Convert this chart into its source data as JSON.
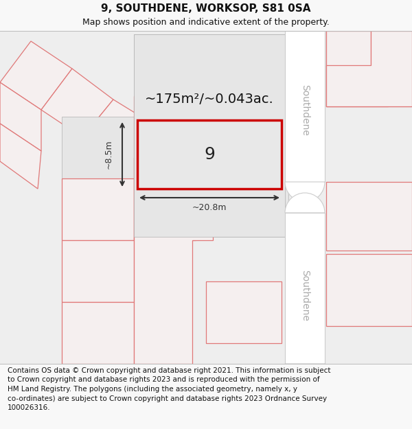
{
  "title": "9, SOUTHDENE, WORKSOP, S81 0SA",
  "subtitle": "Map shows position and indicative extent of the property.",
  "copyright": "Contains OS data © Crown copyright and database right 2021. This information is subject\nto Crown copyright and database rights 2023 and is reproduced with the permission of\nHM Land Registry. The polygons (including the associated geometry, namely x, y\nco-ordinates) are subject to Crown copyright and database rights 2023 Ordnance Survey\n100026316.",
  "bg_color": "#f8f8f8",
  "map_bg": "#eeeeee",
  "prop_fill": "#f5efef",
  "prop_edge": "#e07878",
  "main_block_fill": "#e6e6e6",
  "main_block_edge": "#b0b0b0",
  "plot9_fill": "#e8e8e8",
  "plot9_edge": "#cc0000",
  "road_fill": "#ffffff",
  "road_edge": "#cccccc",
  "dim_color": "#333333",
  "area_text": "~175m²/~0.043ac.",
  "width_text": "~20.8m",
  "height_text": "~8.5m",
  "num_text": "9",
  "road_text": "Southdene",
  "title_fs": 11,
  "sub_fs": 9,
  "copy_fs": 7.5,
  "area_fs": 14,
  "dim_fs": 9,
  "num_fs": 18,
  "road_fs": 10
}
